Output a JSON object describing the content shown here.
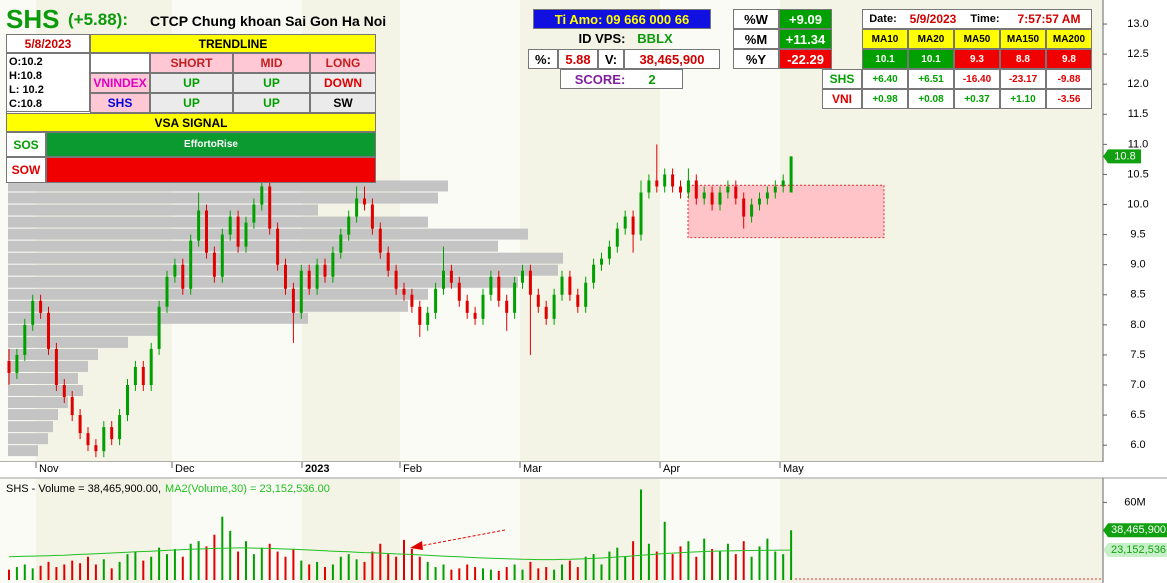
{
  "header": {
    "ticker": "SHS",
    "change": "(+5.88):",
    "company": "CTCP Chung khoan Sai Gon Ha Noi"
  },
  "trend_panel": {
    "date": "5/8/2023",
    "title": "TRENDLINE",
    "ohlc": [
      "O:10.2",
      "H:10.8",
      "L: 10.2",
      "C:10.8"
    ],
    "columns": [
      "SHORT",
      "MID",
      "LONG"
    ],
    "rows": [
      [
        "VNINDEX",
        "UP",
        "UP",
        "DOWN"
      ],
      [
        "SHS",
        "UP",
        "UP",
        "SW"
      ]
    ],
    "vsa_title": "VSA SIGNAL",
    "signals": [
      [
        "SOS",
        "EffortoRise"
      ],
      [
        "SOW"
      ]
    ]
  },
  "info_panel": {
    "contact": "Ti Amo: 09 666 000 66",
    "id_label": "ID VPS:",
    "id": "BBLX",
    "pct_label": "%:",
    "pct": "5.88",
    "vol_label": "V:",
    "vol": "38,465,900",
    "score_label": "SCORE:",
    "score": "2"
  },
  "perf_panel": {
    "rows": [
      [
        "%W",
        "+9.09"
      ],
      [
        "%M",
        "+11.34"
      ],
      [
        "%Y",
        "-22.29"
      ]
    ]
  },
  "ma_panel": {
    "date_label": "Date:",
    "date": "5/9/2023",
    "time_label": "Time:",
    "time": "7:57:57 AM",
    "columns": [
      "MA10",
      "MA20",
      "MA50",
      "MA150",
      "MA200"
    ],
    "values": [
      "10.1",
      "10.1",
      "9.3",
      "8.8",
      "9.8"
    ],
    "rows": [
      [
        "SHS",
        "+6.40",
        "+6.51",
        "-16.40",
        "-23.17",
        "-9.88"
      ],
      [
        "VNI",
        "+0.98",
        "+0.08",
        "+0.37",
        "+1.10",
        "-3.56"
      ]
    ]
  },
  "chart_data": {
    "type": "candlestick",
    "up_color": "#00a000",
    "down_color": "#e00000",
    "x_labels": [
      "Nov",
      "Dec",
      "2023",
      "Feb",
      "Mar",
      "Apr",
      "May"
    ],
    "ylim": [
      5.72,
      13.4
    ],
    "yticks": [
      {
        "value": 6,
        "label": "6.0"
      },
      {
        "value": 6.5,
        "label": "6.5"
      },
      {
        "value": 7,
        "label": "7.0"
      },
      {
        "value": 7.5,
        "label": "7.5"
      },
      {
        "value": 8,
        "label": "8.0"
      },
      {
        "value": 8.5,
        "label": "8.5"
      },
      {
        "value": 9,
        "label": "9.0"
      },
      {
        "value": 9.5,
        "label": "9.5"
      },
      {
        "value": 10,
        "label": "10.0"
      },
      {
        "value": 10.5,
        "label": "10.5"
      },
      {
        "value": 11,
        "label": "11.0"
      },
      {
        "value": 11.5,
        "label": "11.5"
      },
      {
        "value": 12,
        "label": "12.0"
      },
      {
        "value": 12.5,
        "label": "12.5"
      },
      {
        "value": 13,
        "label": "13.0"
      }
    ],
    "ohlc": [
      [
        7.4,
        7.6,
        7.0,
        7.2
      ],
      [
        7.2,
        7.6,
        7.1,
        7.5
      ],
      [
        7.5,
        8.1,
        7.4,
        8.0
      ],
      [
        8.0,
        8.5,
        7.9,
        8.4
      ],
      [
        8.4,
        8.5,
        8.1,
        8.2
      ],
      [
        8.2,
        8.3,
        7.5,
        7.6
      ],
      [
        7.6,
        7.7,
        6.9,
        7.0
      ],
      [
        7.0,
        7.1,
        6.7,
        6.8
      ],
      [
        6.8,
        6.9,
        6.4,
        6.5
      ],
      [
        6.5,
        6.6,
        6.1,
        6.2
      ],
      [
        6.2,
        6.3,
        5.9,
        6.0
      ],
      [
        6.0,
        6.1,
        5.8,
        5.9
      ],
      [
        5.9,
        6.4,
        5.8,
        6.3
      ],
      [
        6.3,
        6.4,
        6.0,
        6.1
      ],
      [
        6.1,
        6.6,
        6.0,
        6.5
      ],
      [
        6.5,
        7.1,
        6.4,
        7.0
      ],
      [
        7.0,
        7.4,
        6.9,
        7.3
      ],
      [
        7.3,
        7.4,
        6.9,
        7.0
      ],
      [
        7.0,
        7.7,
        6.9,
        7.6
      ],
      [
        7.6,
        8.4,
        7.5,
        8.3
      ],
      [
        8.3,
        8.9,
        8.2,
        8.8
      ],
      [
        8.8,
        9.1,
        8.7,
        9.0
      ],
      [
        9.0,
        9.1,
        8.5,
        8.6
      ],
      [
        8.6,
        9.5,
        8.5,
        9.4
      ],
      [
        9.4,
        10.2,
        9.3,
        9.9
      ],
      [
        9.9,
        10.0,
        9.1,
        9.2
      ],
      [
        9.2,
        9.3,
        8.7,
        8.8
      ],
      [
        8.8,
        9.6,
        8.7,
        9.5
      ],
      [
        9.5,
        9.9,
        9.4,
        9.8
      ],
      [
        9.8,
        9.9,
        9.2,
        9.3
      ],
      [
        9.3,
        9.8,
        9.2,
        9.7
      ],
      [
        9.7,
        10.1,
        9.6,
        10.0
      ],
      [
        10.0,
        10.4,
        9.9,
        10.3
      ],
      [
        10.3,
        10.4,
        9.5,
        9.6
      ],
      [
        9.6,
        9.7,
        8.9,
        9.0
      ],
      [
        9.0,
        9.1,
        8.5,
        8.6
      ],
      [
        8.6,
        8.7,
        7.7,
        8.2
      ],
      [
        8.2,
        9.0,
        8.1,
        8.9
      ],
      [
        8.9,
        9.0,
        8.5,
        8.6
      ],
      [
        8.6,
        9.1,
        8.5,
        9.0
      ],
      [
        9.0,
        9.1,
        8.7,
        8.8
      ],
      [
        8.8,
        9.3,
        8.7,
        9.2
      ],
      [
        9.2,
        9.6,
        9.1,
        9.5
      ],
      [
        9.5,
        9.9,
        9.4,
        9.8
      ],
      [
        9.8,
        10.3,
        9.7,
        10.1
      ],
      [
        10.1,
        10.3,
        9.9,
        10.0
      ],
      [
        10.0,
        10.1,
        9.5,
        9.6
      ],
      [
        9.6,
        9.7,
        9.1,
        9.2
      ],
      [
        9.2,
        9.3,
        8.8,
        8.9
      ],
      [
        8.9,
        9.0,
        8.5,
        8.6
      ],
      [
        8.6,
        8.7,
        8.4,
        8.5
      ],
      [
        8.5,
        8.6,
        8.2,
        8.3
      ],
      [
        8.3,
        8.4,
        7.8,
        8.0
      ],
      [
        8.0,
        8.3,
        7.9,
        8.2
      ],
      [
        8.2,
        8.7,
        8.1,
        8.6
      ],
      [
        8.6,
        9.3,
        8.5,
        8.9
      ],
      [
        8.9,
        9.0,
        8.6,
        8.7
      ],
      [
        8.7,
        8.8,
        8.3,
        8.4
      ],
      [
        8.4,
        8.5,
        8.1,
        8.2
      ],
      [
        8.2,
        8.3,
        8.0,
        8.1
      ],
      [
        8.1,
        8.6,
        8.0,
        8.5
      ],
      [
        8.5,
        8.9,
        8.4,
        8.8
      ],
      [
        8.8,
        8.9,
        8.3,
        8.4
      ],
      [
        8.4,
        8.5,
        7.9,
        8.2
      ],
      [
        8.2,
        8.8,
        8.1,
        8.7
      ],
      [
        8.7,
        9.0,
        8.6,
        8.9
      ],
      [
        8.9,
        9.0,
        7.5,
        8.5
      ],
      [
        8.5,
        8.6,
        8.2,
        8.3
      ],
      [
        8.3,
        8.4,
        8.0,
        8.1
      ],
      [
        8.1,
        8.6,
        8.0,
        8.5
      ],
      [
        8.5,
        8.9,
        8.4,
        8.8
      ],
      [
        8.8,
        8.9,
        8.4,
        8.5
      ],
      [
        8.5,
        8.6,
        8.2,
        8.3
      ],
      [
        8.3,
        8.8,
        8.2,
        8.7
      ],
      [
        8.7,
        9.1,
        8.6,
        9.0
      ],
      [
        9.0,
        9.2,
        8.9,
        9.1
      ],
      [
        9.1,
        9.4,
        9.0,
        9.3
      ],
      [
        9.3,
        9.7,
        9.2,
        9.6
      ],
      [
        9.6,
        9.9,
        9.5,
        9.8
      ],
      [
        9.8,
        9.9,
        9.2,
        9.5
      ],
      [
        9.5,
        10.4,
        9.4,
        10.2
      ],
      [
        10.2,
        10.5,
        10.1,
        10.4
      ],
      [
        10.4,
        11.0,
        10.2,
        10.3
      ],
      [
        10.3,
        10.6,
        10.2,
        10.5
      ],
      [
        10.5,
        10.6,
        10.2,
        10.3
      ],
      [
        10.3,
        10.4,
        10.1,
        10.2
      ],
      [
        10.2,
        10.6,
        10.1,
        10.4
      ],
      [
        10.4,
        10.5,
        10.0,
        10.1
      ],
      [
        10.1,
        10.3,
        10.0,
        10.2
      ],
      [
        10.2,
        10.3,
        9.9,
        10.0
      ],
      [
        10.0,
        10.3,
        9.9,
        10.2
      ],
      [
        10.2,
        10.4,
        10.1,
        10.3
      ],
      [
        10.3,
        10.4,
        10.0,
        10.1
      ],
      [
        10.1,
        10.2,
        9.6,
        9.8
      ],
      [
        9.8,
        10.1,
        9.7,
        10.0
      ],
      [
        10.0,
        10.2,
        9.9,
        10.1
      ],
      [
        10.1,
        10.3,
        10.0,
        10.2
      ],
      [
        10.2,
        10.4,
        10.1,
        10.3
      ],
      [
        10.3,
        10.5,
        10.2,
        10.4
      ],
      [
        10.2,
        10.8,
        10.2,
        10.8
      ]
    ],
    "volume_profile": {
      "color": "#c4c4c4",
      "prices": [
        5.9,
        6.1,
        6.3,
        6.5,
        6.7,
        6.9,
        7.1,
        7.3,
        7.5,
        7.7,
        7.9,
        8.1,
        8.3,
        8.5,
        8.7,
        8.9,
        9.1,
        9.3,
        9.5,
        9.7,
        9.9,
        10.1,
        10.3
      ],
      "values": [
        30,
        40,
        45,
        50,
        60,
        75,
        70,
        80,
        90,
        120,
        150,
        300,
        400,
        420,
        510,
        550,
        555,
        490,
        520,
        420,
        310,
        430,
        440
      ]
    },
    "zone": {
      "low": 9.45,
      "high": 10.32,
      "color": "#ffc4c8"
    },
    "volume": {
      "title": "SHS - Volume = 38,465,900.00,",
      "ma_title": "MA2(Volume,30) = 23,152,536.00",
      "ma_color": "#20c020",
      "ylim": [
        0,
        75000000
      ],
      "yticks": [
        {
          "value": 60000000,
          "label": "60M"
        }
      ],
      "values": [
        8000000.0,
        10000000.0,
        12000000.0,
        9000000.0,
        11000000.0,
        14000000.0,
        10000000.0,
        12000000.0,
        15000000.0,
        13000000.0,
        18000000.0,
        12000000.0,
        16000000.0,
        9000000.0,
        14000000.0,
        20000000.0,
        22000000.0,
        15000000.0,
        18000000.0,
        25000000.0,
        20000000.0,
        24000000.0,
        18000000.0,
        28000000.0,
        30000000.0,
        26000000.0,
        35000000.0,
        49000000.0,
        38000000.0,
        22000000.0,
        30000000.0,
        20000000.0,
        25000000.0,
        28000000.0,
        22000000.0,
        18000000.0,
        24000000.0,
        15000000.0,
        12000000.0,
        14000000.0,
        10000000.0,
        12000000.0,
        18000000.0,
        20000000.0,
        16000000.0,
        14000000.0,
        22000000.0,
        28000000.0,
        20000000.0,
        18000000.0,
        31000000.0,
        24000000.0,
        18000000.0,
        14000000.0,
        10000000.0,
        12000000.0,
        8000000.0,
        9000000.0,
        12000000.0,
        10000000.0,
        9000000.0,
        8000000.0,
        7000000.0,
        10000000.0,
        12000000.0,
        8000000.0,
        14000000.0,
        9000000.0,
        10000000.0,
        8000000.0,
        12000000.0,
        15000000.0,
        10000000.0,
        18000000.0,
        20000000.0,
        12000000.0,
        22000000.0,
        25000000.0,
        18000000.0,
        30000000.0,
        70000000.0,
        28000000.0,
        22000000.0,
        45000000.0,
        20000000.0,
        26000000.0,
        30000000.0,
        18000000.0,
        32000000.0,
        24000000.0,
        22000000.0,
        28000000.0,
        20000000.0,
        30000000.0,
        18000000.0,
        26000000.0,
        32000000.0,
        22000000.0,
        20000000.0,
        38465900
      ],
      "ma": [
        18000000.0,
        18200000.0,
        18400000.0,
        18500000.0,
        18600000.0,
        18800000.0,
        19000000.0,
        19200000.0,
        19500000.0,
        19800000.0,
        20000000.0,
        20300000.0,
        20600000.0,
        20900000.0,
        21200000.0,
        21500000.0,
        21800000.0,
        22000000.0,
        22300000.0,
        22600000.0,
        22900000.0,
        23200000.0,
        23500000.0,
        23800000.0,
        24000000.0,
        24200000.0,
        24400000.0,
        24600000.0,
        24700000.0,
        24800000.0,
        24800000.0,
        24700000.0,
        24600000.0,
        24400000.0,
        24200000.0,
        24000000.0,
        23800000.0,
        23500000.0,
        23200000.0,
        22900000.0,
        22600000.0,
        22300000.0,
        22000000.0,
        21800000.0,
        21500000.0,
        21200000.0,
        21000000.0,
        20800000.0,
        20500000.0,
        20200000.0,
        20000000.0,
        19700000.0,
        19400000.0,
        19100000.0,
        18800000.0,
        18500000.0,
        18200000.0,
        17900000.0,
        17600000.0,
        17300000.0,
        17000000.0,
        16800000.0,
        16600000.0,
        16400000.0,
        16200000.0,
        16000000.0,
        15900000.0,
        15800000.0,
        15800000.0,
        15800000.0,
        15900000.0,
        16000000.0,
        16200000.0,
        16400000.0,
        16700000.0,
        17000000.0,
        17400000.0,
        17800000.0,
        18200000.0,
        18600000.0,
        19200000.0,
        19600000.0,
        20000000.0,
        20500000.0,
        20800000.0,
        21100000.0,
        21400000.0,
        21700000.0,
        22000000.0,
        22200000.0,
        22400000.0,
        22500000.0,
        22600000.0,
        22700000.0,
        22800000.0,
        22900000.0,
        23000000.0,
        23050000.0,
        23100000.0,
        23152536
      ],
      "last_label": "38,465,900",
      "ma_last_label": "23,152,536"
    }
  }
}
